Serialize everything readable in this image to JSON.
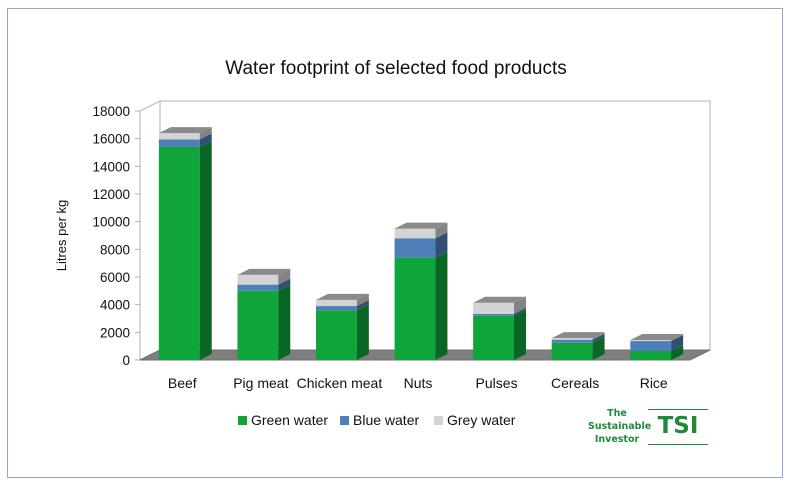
{
  "chart_data": {
    "type": "bar",
    "stacked": true,
    "title": "Water footprint of selected food products",
    "ylabel": "Litres per kg",
    "xlabel": "",
    "ylim": [
      0,
      18000
    ],
    "yticks": [
      0,
      2000,
      4000,
      6000,
      8000,
      10000,
      12000,
      14000,
      16000,
      18000
    ],
    "categories": [
      "Beef",
      "Pig meat",
      "Chicken meat",
      "Nuts",
      "Pulses",
      "Cereals",
      "Rice"
    ],
    "series": [
      {
        "name": "Green water",
        "color": "#0fa53a",
        "values": [
          15400,
          5000,
          3600,
          7400,
          3200,
          1250,
          650
        ]
      },
      {
        "name": "Blue water",
        "color": "#4f7fb8",
        "values": [
          550,
          450,
          300,
          1400,
          140,
          220,
          720
        ]
      },
      {
        "name": "Grey water",
        "color": "#d4d4d4",
        "values": [
          450,
          700,
          450,
          700,
          800,
          110,
          80
        ]
      }
    ],
    "grid": false,
    "legend": "bottom",
    "style": "3d"
  },
  "logo": {
    "line1": "The",
    "line2": "Sustainable",
    "line3": "Investor",
    "mark": "TSI"
  }
}
